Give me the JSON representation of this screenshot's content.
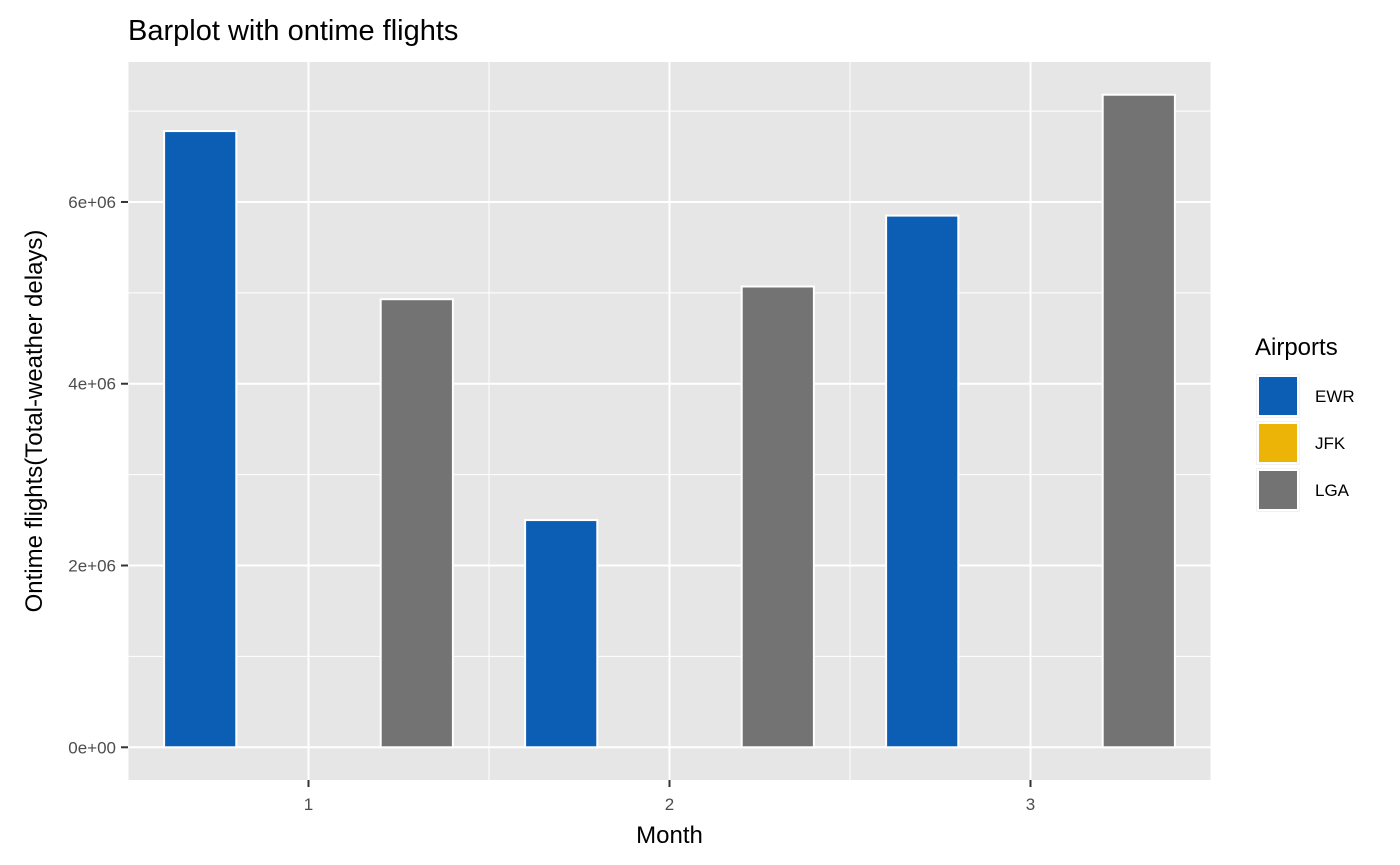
{
  "chart_data": {
    "type": "bar",
    "title": "Barplot with ontime flights",
    "xlabel": "Month",
    "ylabel": "Ontime flights(Total-weather delays)",
    "categories": [
      "1",
      "2",
      "3"
    ],
    "series": [
      {
        "name": "EWR",
        "color": "#0c5eb5",
        "values": [
          6780000,
          2500000,
          5850000
        ]
      },
      {
        "name": "JFK",
        "color": "#ecb407",
        "values": [
          0,
          0,
          0
        ]
      },
      {
        "name": "LGA",
        "color": "#737373",
        "values": [
          4930000,
          5070000,
          7180000
        ]
      }
    ],
    "y_ticks": [
      0,
      2000000,
      4000000,
      6000000
    ],
    "y_tick_labels": [
      "0e+00",
      "2e+06",
      "4e+06",
      "6e+06"
    ],
    "ylim": [
      -360000,
      7540000
    ],
    "xlim": [
      0.5,
      3.5
    ],
    "legend": {
      "title": "Airports",
      "position": "right"
    },
    "grid": true,
    "panel_color": "#e6e6e6"
  }
}
